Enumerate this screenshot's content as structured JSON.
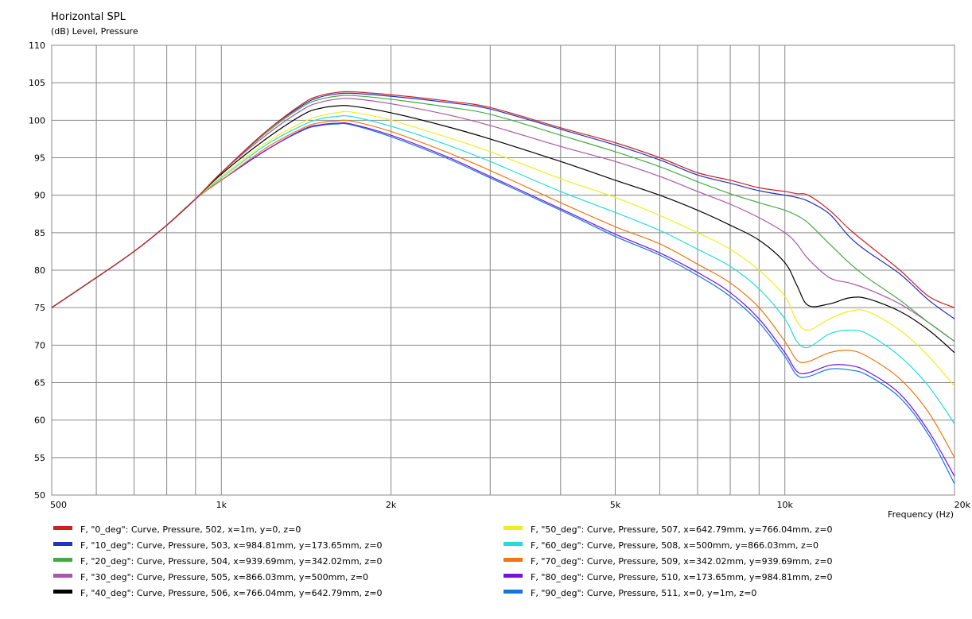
{
  "chart_data": {
    "type": "line",
    "title": "Horizontal SPL",
    "subtitle": "(dB)  Level, Pressure",
    "xlabel": "Frequency  (Hz)",
    "ylabel": "",
    "xscale": "log",
    "xlim": [
      500,
      20000
    ],
    "ylim": [
      50,
      110
    ],
    "grid": true,
    "legend_position": "bottom",
    "y_ticks": [
      50,
      55,
      60,
      65,
      70,
      75,
      80,
      85,
      90,
      95,
      100,
      105,
      110
    ],
    "x_tick_labels": [
      {
        "value": 500,
        "label": "500"
      },
      {
        "value": 1000,
        "label": "1k"
      },
      {
        "value": 2000,
        "label": "2k"
      },
      {
        "value": 5000,
        "label": "5k"
      },
      {
        "value": 10000,
        "label": "10k"
      },
      {
        "value": 20000,
        "label": "20k"
      }
    ],
    "x_grid": [
      500,
      600,
      700,
      800,
      900,
      1000,
      2000,
      3000,
      4000,
      5000,
      6000,
      7000,
      8000,
      9000,
      10000,
      20000
    ],
    "x": [
      500,
      600,
      700,
      800,
      900,
      1000,
      1200,
      1400,
      1500,
      1600,
      1700,
      2000,
      2500,
      3000,
      4000,
      5000,
      6000,
      7000,
      8000,
      9000,
      10000,
      10500,
      11000,
      12000,
      13000,
      14000,
      16000,
      18000,
      20000
    ],
    "series": [
      {
        "name": "F, \"0_deg\": Curve, Pressure, 502, x=1m, y=0, z=0",
        "color": "#cc2222",
        "values": [
          75,
          79,
          82.5,
          86,
          89.5,
          93,
          98.5,
          102.3,
          103.3,
          103.7,
          103.8,
          103.4,
          102.6,
          101.7,
          99,
          97,
          95,
          93,
          92,
          91,
          90.5,
          90.2,
          90,
          88,
          85.5,
          83.5,
          80,
          76.5,
          75
        ]
      },
      {
        "name": "F, \"10_deg\": Curve, Pressure, 503, x=984.81mm, y=173.65mm, z=0",
        "color": "#2233bb",
        "values": [
          75,
          79,
          82.5,
          86,
          89.5,
          93,
          98.5,
          102.1,
          103.1,
          103.5,
          103.6,
          103.2,
          102.4,
          101.5,
          98.8,
          96.7,
          94.7,
          92.7,
          91.6,
          90.6,
          90,
          89.7,
          89.2,
          87.5,
          84.5,
          82.5,
          79.5,
          76,
          73.5
        ]
      },
      {
        "name": "F, \"20_deg\": Curve, Pressure, 504, x=939.69mm, y=342.02mm, z=0",
        "color": "#44aa44",
        "values": [
          75,
          79,
          82.5,
          86,
          89.5,
          93,
          98.3,
          101.9,
          102.8,
          103.2,
          103.3,
          102.8,
          101.8,
          100.8,
          98,
          95.8,
          93.8,
          91.8,
          90.2,
          89,
          88,
          87.3,
          86.3,
          83.5,
          81,
          79,
          76,
          73,
          70.5
        ]
      },
      {
        "name": "F, \"30_deg\": Curve, Pressure, 505, x=866.03mm, y=500mm, z=0",
        "color": "#aa55aa",
        "values": [
          75,
          79,
          82.5,
          86,
          89.5,
          93,
          98,
          101.5,
          102.4,
          102.8,
          102.9,
          102.2,
          100.8,
          99.3,
          96.5,
          94.5,
          92.5,
          90.5,
          88.8,
          87,
          85,
          83.5,
          81.5,
          79,
          78.3,
          77.5,
          75.5,
          73,
          70.5
        ]
      },
      {
        "name": "F, \"40_deg\": Curve, Pressure, 506, x=766.04mm, y=642.79mm, z=0",
        "color": "#000000",
        "values": [
          75,
          79,
          82.5,
          86,
          89.5,
          92.8,
          97.5,
          100.8,
          101.6,
          101.9,
          101.9,
          101,
          99.2,
          97.5,
          94.5,
          92,
          90,
          88,
          86,
          84,
          81,
          78,
          75.3,
          75.5,
          76.3,
          76.2,
          74.5,
          72,
          69
        ]
      },
      {
        "name": "F, \"50_deg\": Curve, Pressure, 507, x=642.79mm, y=766.04mm, z=0",
        "color": "#eeee22",
        "values": [
          75,
          79,
          82.5,
          86,
          89.5,
          92.5,
          97,
          99.8,
          100.6,
          101,
          101.1,
          100,
          97.8,
          95.8,
          92.2,
          89.7,
          87.3,
          85,
          82.8,
          80,
          76.5,
          73.2,
          72,
          73.5,
          74.5,
          74.5,
          72,
          68.5,
          64.5
        ]
      },
      {
        "name": "F, \"60_deg\": Curve, Pressure, 508, x=500mm, y=866.03mm, z=0",
        "color": "#22dddd",
        "values": [
          75,
          79,
          82.5,
          86,
          89.5,
          92.3,
          96.7,
          99.4,
          100.2,
          100.5,
          100.5,
          99.2,
          96.8,
          94.5,
          90.5,
          87.7,
          85.3,
          82.8,
          80.5,
          77.5,
          73.5,
          70.5,
          69.7,
          71.5,
          72,
          71.5,
          68.5,
          64.5,
          59.5
        ]
      },
      {
        "name": "F, \"70_deg\": Curve, Pressure, 509, x=342.02mm, y=939.69mm, z=0",
        "color": "#ee7711",
        "values": [
          75,
          79,
          82.5,
          86,
          89.5,
          92,
          96.3,
          99,
          99.7,
          99.9,
          99.9,
          98.5,
          95.8,
          93.3,
          89,
          85.8,
          83.5,
          80.8,
          78.3,
          75,
          70.5,
          68,
          67.8,
          69,
          69.3,
          68.5,
          65.5,
          61,
          55
        ]
      },
      {
        "name": "F, \"80_deg\": Curve, Pressure, 510, x=173.65mm, y=984.81mm, z=0",
        "color": "#7711dd",
        "values": [
          75,
          79,
          82.5,
          86,
          89.5,
          92,
          96,
          98.8,
          99.4,
          99.6,
          99.5,
          98,
          95.2,
          92.5,
          88.2,
          84.8,
          82.3,
          79.7,
          77,
          73.5,
          69,
          66.5,
          66.3,
          67.3,
          67.3,
          66.5,
          63.5,
          58.5,
          52.5
        ]
      },
      {
        "name": "F, \"90_deg\": Curve, Pressure, 511, x=0, y=1m, z=0",
        "color": "#1177dd",
        "values": [
          75,
          79,
          82.5,
          86,
          89.5,
          92,
          96,
          98.7,
          99.3,
          99.5,
          99.4,
          97.8,
          95,
          92.3,
          88,
          84.5,
          82,
          79.3,
          76.5,
          73,
          68.5,
          66,
          65.8,
          66.8,
          66.7,
          66,
          63,
          58,
          51.5
        ]
      }
    ]
  }
}
